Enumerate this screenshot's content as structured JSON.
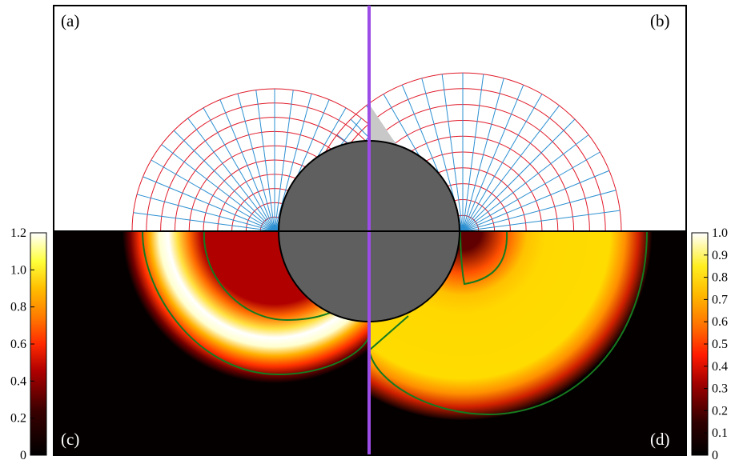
{
  "panels": {
    "a": "(a)",
    "b": "(b)",
    "c": "(c)",
    "d": "(d)"
  },
  "colorbar_left": {
    "ticks": [
      "0",
      "0.2",
      "0.4",
      "0.6",
      "0.8",
      "1.0",
      "1.2"
    ],
    "min": 0,
    "max": 1.2
  },
  "colorbar_right": {
    "ticks": [
      "0",
      "0.1",
      "0.2",
      "0.3",
      "0.4",
      "0.5",
      "0.6",
      "0.7",
      "0.8",
      "0.9",
      "1.0"
    ],
    "min": 0,
    "max": 1.0
  },
  "colors": {
    "divider": "#9b4de6",
    "cylinder": "#5f5f5f",
    "wedge": "#c8c8c8",
    "grid_radial": "#e01b2a",
    "grid_angular": "#2b8fd1",
    "contour": "#157a1f",
    "background_field": "#050000"
  },
  "colormap": "hot"
}
